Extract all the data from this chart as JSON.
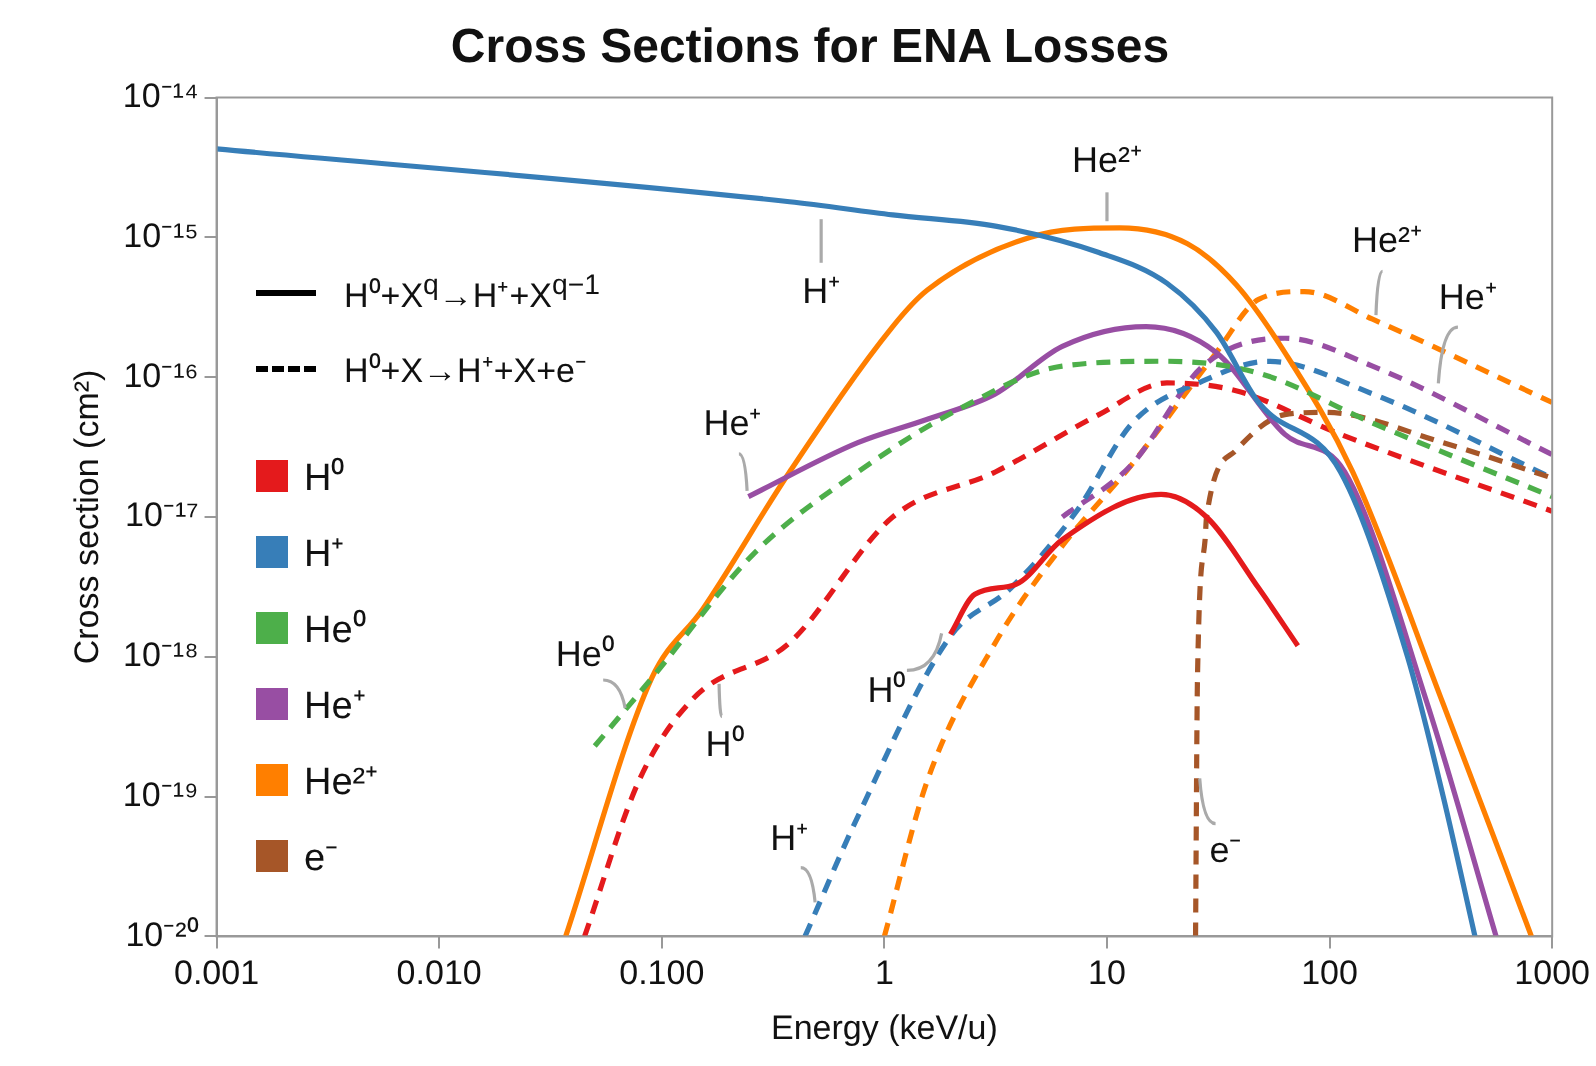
{
  "chart_data": {
    "type": "line",
    "title": "Cross Sections for ENA Losses",
    "xlabel": "Energy (keV/u)",
    "ylabel": "Cross section (cm²)",
    "log": "xy",
    "grid": false,
    "legend": "left",
    "marker": "none",
    "xlim": [
      0.001,
      1000
    ],
    "ylim": [
      1e-20,
      1e-14
    ],
    "xticks": [
      {
        "value": 0.001,
        "label": "0.001"
      },
      {
        "value": 0.01,
        "label": "0.010"
      },
      {
        "value": 0.1,
        "label": "0.100"
      },
      {
        "value": 1,
        "label": "1"
      },
      {
        "value": 10,
        "label": "10"
      },
      {
        "value": 100,
        "label": "100"
      },
      {
        "value": 1000,
        "label": "1000"
      }
    ],
    "yticks": [
      {
        "value": 1e-20,
        "label": "10⁻²⁰"
      },
      {
        "value": 1e-19,
        "label": "10⁻¹⁹"
      },
      {
        "value": 1e-18,
        "label": "10⁻¹⁸"
      },
      {
        "value": 1e-17,
        "label": "10⁻¹⁷"
      },
      {
        "value": 1e-16,
        "label": "10⁻¹⁶"
      },
      {
        "value": 1e-15,
        "label": "10⁻¹⁵"
      },
      {
        "value": 1e-14,
        "label": "10⁻¹⁴"
      }
    ],
    "series": [
      {
        "name": "H⁰",
        "color": "#e41a1c",
        "line_style": "solid",
        "x": [
          1.98,
          2.55,
          3.9,
          6.3,
          17.5,
          28,
          48,
          72
        ],
        "values": [
          1.45e-18,
          2.8e-18,
          3.3e-18,
          6.9e-18,
          1.45e-17,
          1e-17,
          3.1e-18,
          1.2e-18
        ]
      },
      {
        "name": "H⁺",
        "color": "#377eb8",
        "line_style": "solid",
        "x": [
          0.001,
          0.375,
          1.09,
          3.2,
          9.2,
          18.6,
          31,
          48,
          112,
          224,
          324,
          450
        ],
        "values": [
          4.3e-15,
          1.8e-15,
          1.45e-15,
          1.2e-15,
          7.8e-16,
          4.7e-16,
          2.1e-16,
          6.6e-17,
          2.1e-17,
          1e-18,
          1e-19,
          1e-20
        ]
      },
      {
        "name": "He⁰",
        "color": "#4daf4a",
        "line_style": "dashed",
        "x": [
          0.05,
          0.09,
          0.26,
          0.76,
          2.2,
          6.3,
          18.6,
          48,
          156,
          1000
        ],
        "values": [
          2.3e-19,
          7e-19,
          5.5e-18,
          2.1e-17,
          6e-17,
          1.2e-16,
          1.3e-16,
          1.07e-16,
          4.7e-17,
          1.4e-17
        ]
      },
      {
        "name": "He⁺",
        "color": "#984ea3",
        "line_style": "solid",
        "x": [
          0.245,
          0.76,
          1.56,
          3.15,
          6.3,
          15,
          31,
          63,
          117,
          275,
          560
        ],
        "values": [
          1.4e-17,
          3.4e-17,
          5e-17,
          7.6e-17,
          1.66e-16,
          2.3e-16,
          1.5e-16,
          3.9e-17,
          2.1e-17,
          4.6e-19,
          1e-20
        ]
      },
      {
        "name": "He²⁺",
        "color": "#ff7f00",
        "line_style": "solid",
        "x": [
          0.037,
          0.09,
          0.153,
          0.375,
          1.09,
          1.56,
          4.5,
          11.4,
          23,
          38,
          63,
          127,
          324,
          807
        ],
        "values": [
          1e-20,
          7e-19,
          2.2e-18,
          2.1e-17,
          2.3e-16,
          4.2e-16,
          1e-15,
          1.17e-15,
          9e-16,
          4.6e-16,
          1.5e-16,
          2.1e-17,
          4.6e-19,
          1e-20
        ]
      },
      {
        "name": "e⁻",
        "color": "#a65628",
        "line_style": "dashed",
        "x": [
          25,
          25.5,
          27.6,
          28,
          38,
          63,
          95,
          324,
          1000
        ],
        "values": [
          1e-20,
          7e-19,
          6.9e-18,
          1e-17,
          3e-17,
          5.4e-17,
          5.6e-17,
          3.4e-17,
          1.9e-17
        ]
      },
      {
        "color": "#e41a1c",
        "line_style": "dashed",
        "x": [
          0.045,
          0.079,
          0.138,
          0.375,
          1.09,
          3.15,
          9.2,
          18.6,
          38,
          112,
          1000
        ],
        "values": [
          1e-20,
          1.3e-19,
          5e-19,
          1.26e-18,
          1e-17,
          2.1e-17,
          5.4e-17,
          9.1e-17,
          8e-17,
          3.9e-17,
          1.1e-17
        ]
      },
      {
        "color": "#377eb8",
        "line_style": "dashed",
        "x": [
          0.44,
          0.76,
          1.98,
          3.7,
          7.3,
          13,
          27,
          53,
          156,
          1000
        ],
        "values": [
          1e-20,
          7.2e-20,
          1.4e-18,
          3.1e-18,
          1.1e-17,
          4.7e-17,
          9.4e-17,
          1.3e-16,
          7.6e-17,
          1.9e-17
        ]
      },
      {
        "color": "#984ea3",
        "line_style": "dashed",
        "x": [
          6.3,
          13,
          27,
          63,
          156,
          1000
        ],
        "values": [
          1e-17,
          2.4e-17,
          1.2e-16,
          1.9e-16,
          1.2e-16,
          2.8e-17
        ]
      },
      {
        "color": "#ff7f00",
        "line_style": "dashed",
        "x": [
          1,
          1.56,
          3.15,
          6.3,
          13,
          31,
          48,
          77,
          156,
          1000
        ],
        "values": [
          1e-20,
          1.3e-19,
          1.26e-18,
          6.2e-18,
          2.4e-17,
          1.5e-16,
          3.6e-16,
          4.1e-16,
          2.6e-16,
          6.6e-17
        ]
      }
    ],
    "annotations": [
      {
        "text": "He²⁺",
        "x": 10,
        "y": 1.2e-15
      },
      {
        "text": "H⁺",
        "x": 0.52,
        "y": 1.5e-15
      },
      {
        "text": "He⁺",
        "x": 0.245,
        "y": 1.4e-17
      },
      {
        "text": "He⁰",
        "x": 0.071,
        "y": 4e-19
      },
      {
        "text": "H⁰",
        "x": 0.18,
        "y": 7e-19
      },
      {
        "text": "H⁺",
        "x": 0.5,
        "y": 1.6e-20
      },
      {
        "text": "H⁰",
        "x": 1.9,
        "y": 1.6e-18
      },
      {
        "text": "e⁻",
        "x": 25.5,
        "y": 1.5e-19
      },
      {
        "text": "He²⁺",
        "x": 160,
        "y": 2.5e-16
      },
      {
        "text": "He⁺",
        "x": 300,
        "y": 8e-17
      },
      "H⁰+X$^{q}$→H⁺+X$^{q−1}$",
      "H⁰+X→H⁺+X+e⁻"
    ]
  }
}
